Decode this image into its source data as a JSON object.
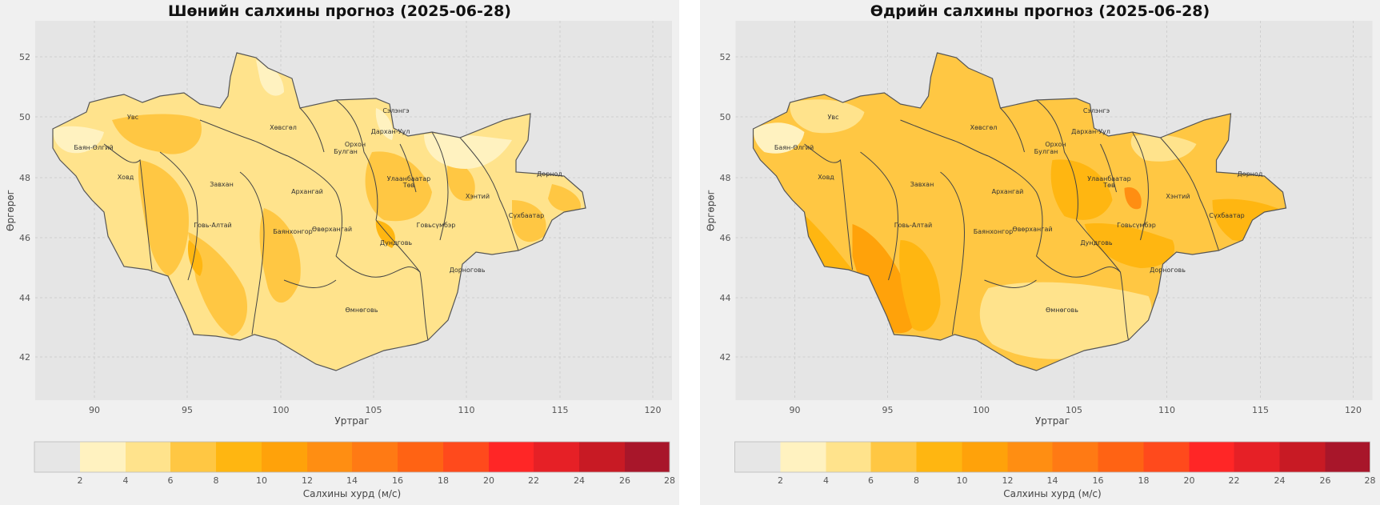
{
  "panels": [
    {
      "id": "left",
      "title": "Шөнийн салхины прогноз (2025-06-28)",
      "xlabel": "Уртраг",
      "ylabel": "Өргөрөг",
      "colorbar_label": "Салхины хурд (м/с)"
    },
    {
      "id": "right",
      "title": "Өдрийн салхины прогноз (2025-06-28)",
      "xlabel": "Уртраг",
      "ylabel": "Өргөрөг",
      "colorbar_label": "Салхины хурд (м/с)"
    }
  ],
  "chart_data": {
    "type": "filled-contour-map",
    "x_ticks": [
      90,
      95,
      100,
      105,
      110,
      115,
      120
    ],
    "y_ticks": [
      42,
      44,
      46,
      48,
      50,
      52
    ],
    "xlim": [
      87,
      121
    ],
    "ylim": [
      40.5,
      53.2
    ],
    "grid": true,
    "colorbar": {
      "levels": [
        0,
        2,
        4,
        6,
        8,
        10,
        12,
        14,
        16,
        18,
        20,
        22,
        24,
        26,
        28
      ],
      "tick_labels": [
        "2",
        "4",
        "6",
        "8",
        "10",
        "12",
        "14",
        "16",
        "18",
        "20",
        "22",
        "24",
        "26",
        "28"
      ],
      "colors": [
        "#e6e6e6",
        "#fff2c0",
        "#ffe38c",
        "#ffc743",
        "#ffb611",
        "#ffa20a",
        "#ff8e12",
        "#ff7a14",
        "#ff6314",
        "#ff4a1c",
        "#ff2626",
        "#e62026",
        "#c81a24",
        "#a8162a"
      ]
    },
    "region_labels": [
      {
        "name": "Увс",
        "lon": 91.2,
        "lat": 49.98
      },
      {
        "name": "Баян-Өлгий",
        "lon": 89.2,
        "lat": 48.95
      },
      {
        "name": "Ховд",
        "lon": 91.7,
        "lat": 47.99
      },
      {
        "name": "Завхан",
        "lon": 96.9,
        "lat": 47.72
      },
      {
        "name": "Хөвсгөл",
        "lon": 100.2,
        "lat": 49.65
      },
      {
        "name": "Сэлэнгэ",
        "lon": 106.2,
        "lat": 50.22
      },
      {
        "name": "Дархан-Уул",
        "lon": 106.0,
        "lat": 49.47
      },
      {
        "name": "Орхон",
        "lon": 104.0,
        "lat": 49.05
      },
      {
        "name": "Булган",
        "lon": 103.5,
        "lat": 48.8
      },
      {
        "name": "Архангай",
        "lon": 101.5,
        "lat": 47.45
      },
      {
        "name": "Улаанбаатар",
        "lon": 107.0,
        "lat": 47.92
      },
      {
        "name": "Төв",
        "lon": 107.0,
        "lat": 47.7
      },
      {
        "name": "Хэнтий",
        "lon": 110.6,
        "lat": 47.3
      },
      {
        "name": "Дорнод",
        "lon": 114.8,
        "lat": 48.05
      },
      {
        "name": "Сүхбаатар",
        "lon": 113.9,
        "lat": 46.68
      },
      {
        "name": "Говь-Алтай",
        "lon": 96.1,
        "lat": 46.38
      },
      {
        "name": "Баянхонгор",
        "lon": 100.7,
        "lat": 46.2
      },
      {
        "name": "Өвөрхангай",
        "lon": 102.7,
        "lat": 46.28
      },
      {
        "name": "Дундговь",
        "lon": 106.5,
        "lat": 45.75
      },
      {
        "name": "Говьсүмбэр",
        "lon": 108.9,
        "lat": 46.38
      },
      {
        "name": "Дорноговь",
        "lon": 110.7,
        "lat": 44.9
      },
      {
        "name": "Өмнөговь",
        "lon": 104.6,
        "lat": 43.6
      }
    ]
  }
}
